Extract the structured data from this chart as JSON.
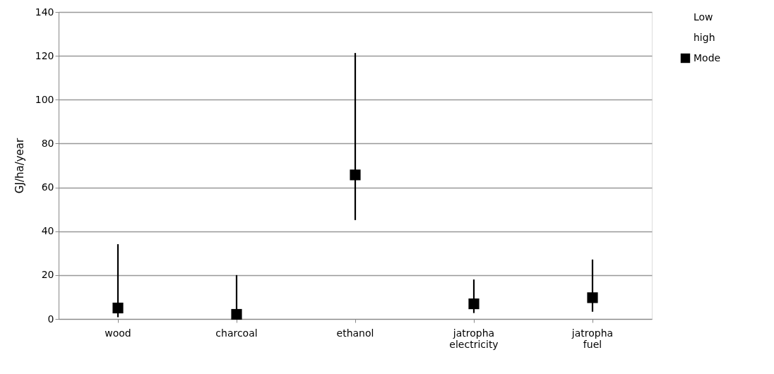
{
  "chart_data": {
    "type": "scatter",
    "ylabel": "GJ/ha/year",
    "categories": [
      "wood",
      "charcoal",
      "ethanol",
      "jatropha electricity",
      "jatropha fuel"
    ],
    "series": [
      {
        "name": "Low",
        "color": "#000000",
        "marker": "none",
        "values": [
          null,
          null,
          null,
          null,
          null
        ]
      },
      {
        "name": "high",
        "color": "#000000",
        "marker": "none",
        "values": [
          null,
          null,
          null,
          null,
          null
        ]
      },
      {
        "name": "Mode",
        "color": "#000000",
        "marker": "square",
        "values": [
          5,
          2.1,
          65.7,
          6.9,
          9.7
        ],
        "errors": [
          [
            0.8,
            34.1
          ],
          [
            0,
            20
          ],
          [
            45.1,
            121.3
          ],
          [
            2.7,
            18
          ],
          [
            3.3,
            27.1
          ]
        ]
      }
    ],
    "ylim": [
      0,
      140
    ],
    "yticks": [
      0,
      20,
      40,
      60,
      80,
      100,
      120,
      140
    ],
    "grid": "y",
    "legend": "right"
  }
}
